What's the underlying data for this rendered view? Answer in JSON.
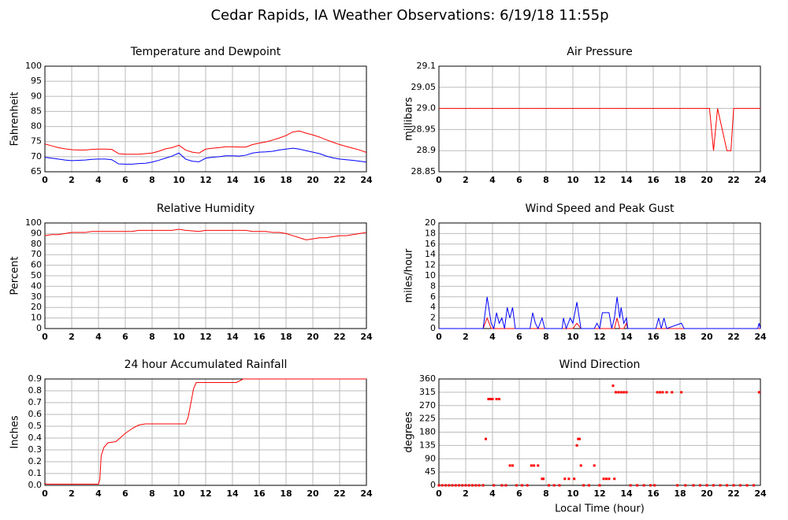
{
  "title": "Cedar Rapids, IA Weather Observations: 6/19/18 11:55p",
  "chart_data": [
    {
      "type": "line",
      "title": "Temperature and Dewpoint",
      "ylabel": "Fahrenheit",
      "xlim": [
        0,
        24
      ],
      "xticks": [
        0,
        2,
        4,
        6,
        8,
        10,
        12,
        14,
        16,
        18,
        20,
        22,
        24
      ],
      "ylim": [
        65,
        100
      ],
      "yticks": [
        65,
        70,
        75,
        80,
        85,
        90,
        95,
        100
      ],
      "grid": true,
      "x": [
        0,
        0.5,
        1,
        1.5,
        2,
        2.5,
        3,
        3.5,
        4,
        4.5,
        5,
        5.5,
        6,
        6.5,
        7,
        7.5,
        8,
        8.5,
        9,
        9.5,
        10,
        10.5,
        11,
        11.5,
        12,
        12.5,
        13,
        13.5,
        14,
        14.5,
        15,
        15.5,
        16,
        16.5,
        17,
        17.5,
        18,
        18.5,
        19,
        19.5,
        20,
        20.5,
        21,
        21.5,
        22,
        22.5,
        23,
        23.5,
        24
      ],
      "series": [
        {
          "color": "#ff0000",
          "values": [
            74.2,
            73.6,
            73.0,
            72.6,
            72.3,
            72.2,
            72.2,
            72.4,
            72.5,
            72.5,
            72.4,
            71.0,
            70.8,
            70.8,
            70.8,
            71.0,
            71.2,
            71.8,
            72.6,
            73.0,
            73.8,
            72.2,
            71.5,
            71.2,
            72.5,
            72.8,
            73.0,
            73.3,
            73.3,
            73.2,
            73.2,
            74.0,
            74.5,
            74.9,
            75.5,
            76.2,
            77.0,
            78.2,
            78.5,
            77.8,
            77.2,
            76.5,
            75.6,
            74.8,
            74.0,
            73.4,
            72.8,
            72.2,
            71.4
          ]
        },
        {
          "color": "#0000ff",
          "values": [
            69.8,
            69.5,
            69.2,
            68.9,
            68.7,
            68.8,
            68.9,
            69.1,
            69.2,
            69.2,
            69.0,
            67.6,
            67.5,
            67.5,
            67.7,
            67.8,
            68.2,
            68.8,
            69.5,
            70.2,
            71.2,
            69.2,
            68.5,
            68.3,
            69.5,
            69.8,
            70.0,
            70.3,
            70.3,
            70.2,
            70.5,
            71.2,
            71.5,
            71.6,
            71.8,
            72.2,
            72.5,
            72.8,
            72.5,
            72.0,
            71.5,
            71.0,
            70.2,
            69.6,
            69.2,
            69.0,
            68.8,
            68.5,
            68.2
          ]
        }
      ]
    },
    {
      "type": "line",
      "title": "Air Pressure",
      "ylabel": "millibars",
      "xlim": [
        0,
        24
      ],
      "xticks": [
        0,
        2,
        4,
        6,
        8,
        10,
        12,
        14,
        16,
        18,
        20,
        22,
        24
      ],
      "ylim": [
        28.85,
        29.1
      ],
      "yticks": [
        28.85,
        28.9,
        28.95,
        {
          "value": 29,
          "label": "29.0"
        },
        29.05,
        29.1
      ],
      "grid": true,
      "x": [
        0,
        20.2,
        20.5,
        20.8,
        21.5,
        21.8,
        22.0,
        24
      ],
      "series": [
        {
          "color": "#ff0000",
          "values": [
            29,
            29,
            28.9,
            29,
            28.9,
            28.9,
            29,
            29
          ]
        }
      ]
    },
    {
      "type": "line",
      "title": "Relative Humidity",
      "ylabel": "Percent",
      "xlim": [
        0,
        24
      ],
      "xticks": [
        0,
        2,
        4,
        6,
        8,
        10,
        12,
        14,
        16,
        18,
        20,
        22,
        24
      ],
      "ylim": [
        0,
        100
      ],
      "yticks": [
        0,
        10,
        20,
        30,
        40,
        50,
        60,
        70,
        80,
        90,
        100
      ],
      "grid": true,
      "x": [
        0,
        0.5,
        1,
        1.5,
        2,
        2.5,
        3,
        3.5,
        4,
        4.5,
        5,
        5.5,
        6,
        6.5,
        7,
        7.5,
        8,
        8.5,
        9,
        9.5,
        10,
        10.5,
        11,
        11.5,
        12,
        12.5,
        13,
        13.5,
        14,
        14.5,
        15,
        15.5,
        16,
        16.5,
        17,
        17.5,
        18,
        18.5,
        19,
        19.5,
        20,
        20.5,
        21,
        21.5,
        22,
        22.5,
        23,
        23.5,
        24
      ],
      "series": [
        {
          "color": "#ff0000",
          "values": [
            88,
            89,
            89,
            90,
            91,
            91,
            91,
            92,
            92,
            92,
            92,
            92,
            92,
            92,
            93,
            93,
            93,
            93,
            93,
            93,
            94,
            93,
            92.5,
            92,
            93,
            93,
            93,
            93,
            93,
            93,
            93,
            92,
            92,
            92,
            91,
            91,
            90,
            88,
            86,
            84,
            85,
            86,
            86,
            87,
            88,
            88,
            89,
            90,
            91
          ]
        }
      ]
    },
    {
      "type": "line",
      "title": "Wind Speed and Peak Gust",
      "ylabel": "miles/hour",
      "xlim": [
        0,
        24
      ],
      "xticks": [
        0,
        2,
        4,
        6,
        8,
        10,
        12,
        14,
        16,
        18,
        20,
        22,
        24
      ],
      "ylim": [
        0,
        20
      ],
      "yticks": [
        0,
        2,
        4,
        6,
        8,
        10,
        12,
        14,
        16,
        18,
        20
      ],
      "grid": true,
      "x": [
        0,
        3.3,
        3.6,
        3.9,
        4.1,
        4.3,
        4.5,
        4.7,
        4.9,
        5.1,
        5.3,
        5.5,
        5.7,
        6.8,
        7.0,
        7.2,
        7.4,
        7.7,
        7.9,
        9.2,
        9.3,
        9.5,
        9.8,
        10.0,
        10.3,
        10.6,
        11.6,
        11.8,
        12.0,
        12.2,
        12.7,
        12.9,
        13.1,
        13.3,
        13.5,
        13.6,
        13.8,
        14.0,
        14.1,
        16.2,
        16.4,
        16.6,
        16.8,
        17.0,
        18.1,
        18.3,
        23.8,
        23.9,
        24
      ],
      "series": [
        {
          "color": "#ff0000",
          "values": [
            0,
            0,
            2,
            0,
            0,
            0,
            0,
            0,
            0,
            0,
            0,
            0,
            0,
            0,
            0,
            0,
            0,
            0,
            0,
            0,
            0,
            0,
            0,
            0,
            1,
            0,
            0,
            0,
            0,
            0,
            0,
            0,
            0,
            2,
            0,
            0,
            0,
            1,
            0,
            0,
            0,
            0,
            0,
            0,
            0,
            0,
            0,
            0,
            0
          ]
        },
        {
          "color": "#0000ff",
          "values": [
            0,
            0,
            6,
            1,
            0,
            3,
            1,
            2,
            0,
            4,
            2,
            4,
            0,
            0,
            3,
            1,
            0,
            2,
            0,
            0,
            2,
            0,
            2,
            1,
            5,
            0,
            0,
            1,
            0,
            3,
            3,
            0,
            2,
            6,
            2,
            4,
            1,
            2,
            0,
            0,
            2,
            0,
            2,
            0,
            1,
            0,
            0,
            1,
            0
          ]
        }
      ]
    },
    {
      "type": "line",
      "title": "24 hour Accumulated Rainfall",
      "ylabel": "Inches",
      "xlim": [
        0,
        24
      ],
      "xticks": [
        0,
        2,
        4,
        6,
        8,
        10,
        12,
        14,
        16,
        18,
        20,
        22,
        24
      ],
      "ylim": [
        0,
        0.9
      ],
      "yticks": [
        {
          "value": 0,
          "label": "0.0"
        },
        0.1,
        0.2,
        0.3,
        0.4,
        0.5,
        0.6,
        0.7,
        0.8,
        0.9
      ],
      "grid": true,
      "x": [
        0,
        0.1,
        4.0,
        4.1,
        4.2,
        4.4,
        4.7,
        5.3,
        5.6,
        6.0,
        6.5,
        7.0,
        7.5,
        10.5,
        10.7,
        10.9,
        11.1,
        11.3,
        14.3,
        14.8,
        24
      ],
      "series": [
        {
          "color": "#ff0000",
          "values": [
            0.02,
            0.01,
            0.01,
            0.05,
            0.25,
            0.32,
            0.36,
            0.37,
            0.4,
            0.44,
            0.48,
            0.51,
            0.52,
            0.52,
            0.58,
            0.7,
            0.82,
            0.87,
            0.87,
            0.9,
            0.9
          ]
        }
      ]
    },
    {
      "type": "scatter",
      "title": "Wind Direction",
      "ylabel": "degrees",
      "xlabel": "Local Time (hour)",
      "xlim": [
        0,
        24
      ],
      "xticks": [
        0,
        2,
        4,
        6,
        8,
        10,
        12,
        14,
        16,
        18,
        20,
        22,
        24
      ],
      "ylim": [
        0,
        360
      ],
      "yticks": [
        0,
        45,
        90,
        135,
        180,
        225,
        270,
        315,
        360
      ],
      "grid": true,
      "x": [
        0,
        0.25,
        0.5,
        0.75,
        1,
        1.25,
        1.5,
        1.75,
        2,
        2.25,
        2.5,
        2.75,
        3,
        3.3,
        3.5,
        3.7,
        3.8,
        3.9,
        4.0,
        4.1,
        4.3,
        4.5,
        4.7,
        5.0,
        5.3,
        5.5,
        5.8,
        6.2,
        6.6,
        6.9,
        7.1,
        7.4,
        7.7,
        7.8,
        8.2,
        8.6,
        9.0,
        9.4,
        9.7,
        10.1,
        10.3,
        10.4,
        10.5,
        10.6,
        10.8,
        11.2,
        11.6,
        12.0,
        12.3,
        12.5,
        12.7,
        13.0,
        13.1,
        13.2,
        13.4,
        13.6,
        13.8,
        14.0,
        14.3,
        14.8,
        15.3,
        15.8,
        16.1,
        16.3,
        16.5,
        16.7,
        17.0,
        17.4,
        17.8,
        18.1,
        18.4,
        19,
        19.5,
        20,
        20.5,
        21,
        21.5,
        22,
        22.5,
        23,
        23.5,
        23.9
      ],
      "series": [
        {
          "color": "#ff0000",
          "values": [
            0,
            0,
            0,
            0,
            0,
            0,
            0,
            0,
            0,
            0,
            0,
            0,
            0,
            0,
            157,
            292,
            292,
            292,
            292,
            0,
            292,
            292,
            0,
            0,
            67,
            67,
            0,
            0,
            0,
            67,
            67,
            67,
            22,
            22,
            0,
            0,
            0,
            22,
            22,
            22,
            135,
            157,
            157,
            67,
            0,
            0,
            67,
            0,
            22,
            22,
            22,
            337,
            22,
            315,
            315,
            315,
            315,
            315,
            0,
            0,
            0,
            0,
            0,
            315,
            315,
            315,
            315,
            315,
            0,
            315,
            0,
            0,
            0,
            0,
            0,
            0,
            0,
            0,
            0,
            0,
            0,
            315
          ]
        }
      ]
    }
  ]
}
